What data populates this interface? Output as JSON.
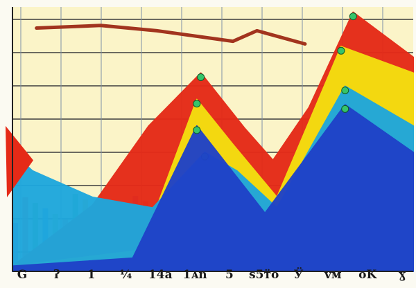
{
  "chart_data": {
    "type": "area",
    "title": "",
    "xlabel": "",
    "ylabel": "",
    "grid": true,
    "legend": "none",
    "x_tick_labels": [
      "G",
      "ʔ",
      "1",
      "¼",
      "14a",
      "1ᴀn",
      "5",
      "ѕ5ᴛ̈ᴏ",
      "Ӱ",
      "ᴠᴍ",
      "ᴏK",
      "ɣ"
    ],
    "ylim": [
      0,
      100
    ],
    "series": [
      {
        "color": "#e52a17",
        "x": [
          0,
          20,
          34,
          47,
          58,
          65,
          74,
          85,
          100
        ],
        "y": [
          2,
          25,
          55,
          75,
          54,
          42,
          62,
          98,
          81
        ]
      },
      {
        "color": "#f4df10",
        "x": [
          0,
          32,
          46,
          55,
          66,
          82,
          100
        ],
        "y": [
          2,
          8,
          65,
          48,
          28,
          85,
          75
        ]
      },
      {
        "color": "#1ea7dd",
        "x": [
          0,
          5,
          20,
          35,
          48,
          56,
          66,
          83,
          100
        ],
        "y": [
          45,
          38,
          28,
          24,
          45,
          38,
          24,
          70,
          55
        ]
      },
      {
        "color": "#1f42c8",
        "x": [
          0,
          30,
          46,
          63,
          83,
          100
        ],
        "y": [
          2,
          5,
          55,
          22,
          63,
          45
        ]
      }
    ],
    "top_line": {
      "color": "#a2341e",
      "x": [
        6,
        22,
        36,
        55,
        61,
        73
      ],
      "y": [
        92,
        93,
        91,
        87,
        91,
        86
      ]
    },
    "bar_colors": [
      "#7b4fd6",
      "#e84a3a",
      "#51d43b",
      "#2e87e0",
      "#a8e34a",
      "#ef6c5a",
      "#3fbf55",
      "#f2c32c",
      "#4cd0d8",
      "#c2e54b",
      "#e35b9c",
      "#25b04a"
    ]
  }
}
